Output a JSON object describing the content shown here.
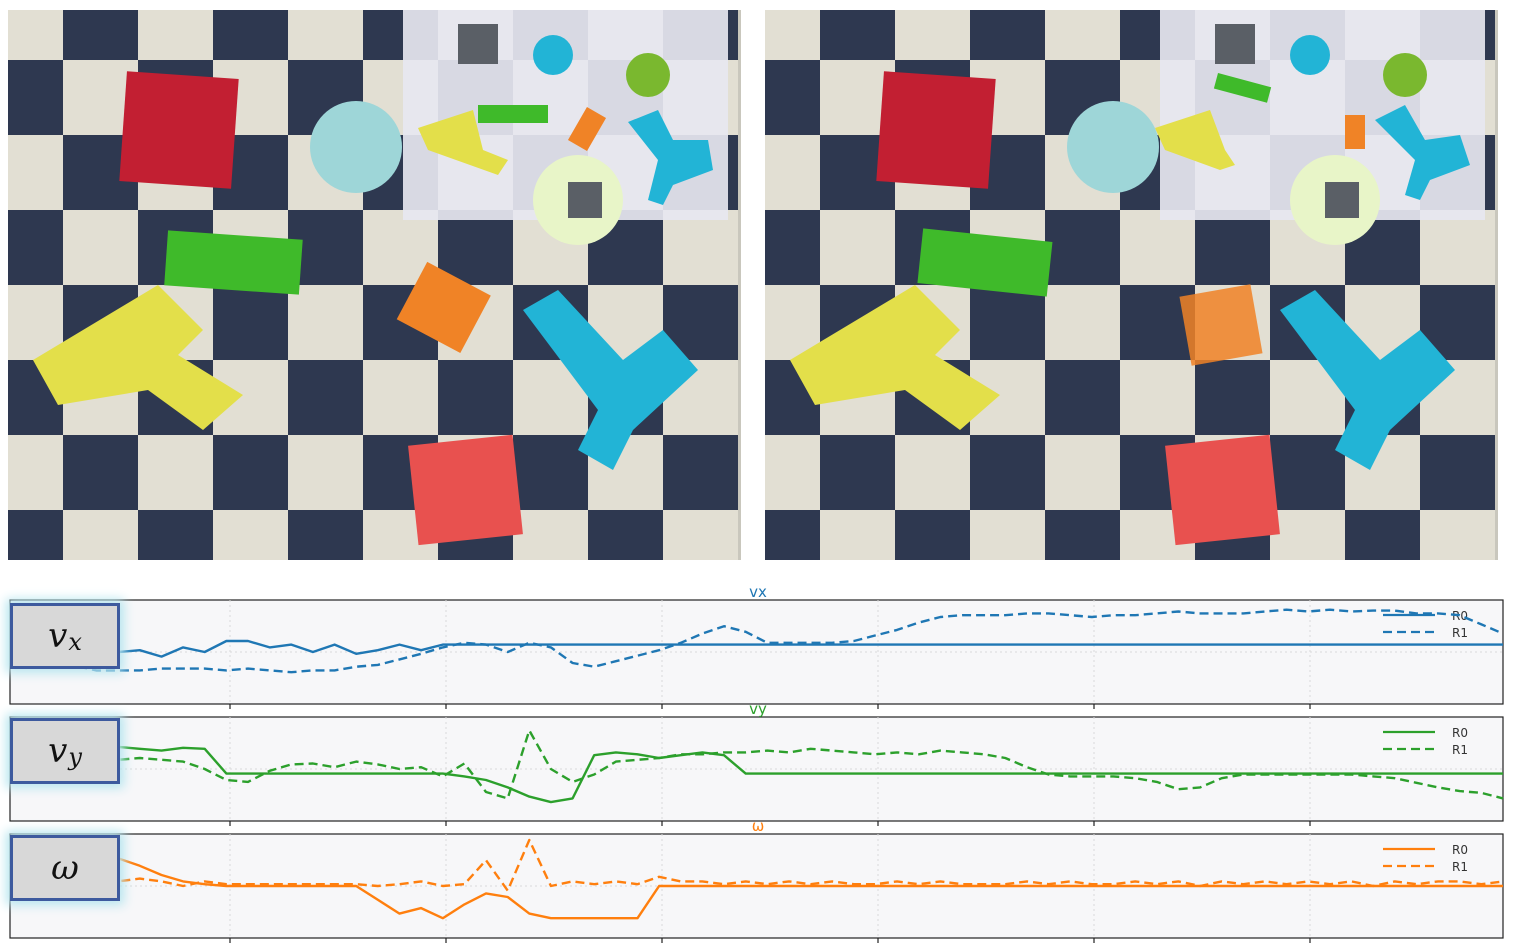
{
  "labels": {
    "vx": {
      "main": "v",
      "sub": "x"
    },
    "vy": {
      "main": "v",
      "sub": "y"
    },
    "omega": {
      "main": "ω"
    }
  },
  "colors": {
    "vx": "#1f77b4",
    "vy": "#2ca02c",
    "omega": "#ff7f0e",
    "floor_light": "#e2dfd3",
    "floor_dark": "#2e3850",
    "box_red": "#c21f32",
    "box_green": "#3fba2a",
    "box_yellow": "#e3df4a",
    "box_orange": "#f08326",
    "box_cyan": "#22b4d6",
    "box_salmon": "#e8514f",
    "table_cyan": "#9ed6d8"
  },
  "chart_data": [
    {
      "type": "line",
      "title": "vx",
      "ylim": [
        0,
        100
      ],
      "grid": true,
      "legend": "top-right",
      "series": [
        {
          "name": "R0",
          "style": "solid",
          "values": [
            35,
            40,
            33,
            55,
            55,
            50,
            52,
            45,
            55,
            50,
            62,
            62,
            55,
            58,
            50,
            58,
            48,
            52,
            58,
            52,
            58,
            58,
            58,
            58,
            58,
            58,
            58,
            58,
            58,
            58,
            58,
            58,
            58,
            58,
            58,
            58,
            58,
            58,
            58,
            58,
            58,
            58,
            58,
            58,
            58,
            58,
            58,
            58,
            58,
            58,
            58,
            58,
            58,
            58,
            58,
            58,
            58,
            58,
            58,
            58,
            58,
            58,
            58,
            58,
            58,
            58,
            58,
            58,
            58,
            58
          ]
        },
        {
          "name": "R1",
          "style": "dashed",
          "values": [
            40,
            37,
            42,
            35,
            30,
            30,
            30,
            32,
            32,
            32,
            30,
            32,
            30,
            28,
            30,
            30,
            34,
            36,
            42,
            48,
            55,
            60,
            58,
            50,
            60,
            55,
            38,
            34,
            40,
            46,
            52,
            60,
            70,
            78,
            72,
            60,
            60,
            60,
            60,
            62,
            68,
            74,
            82,
            88,
            90,
            90,
            90,
            92,
            92,
            90,
            88,
            90,
            90,
            92,
            94,
            92,
            92,
            92,
            94,
            96,
            94,
            96,
            94,
            95,
            95,
            92,
            92,
            90,
            80,
            70
          ]
        }
      ]
    },
    {
      "type": "line",
      "title": "vy",
      "ylim": [
        0,
        100
      ],
      "grid": true,
      "legend": "top-right",
      "series": [
        {
          "name": "R0",
          "style": "solid",
          "values": [
            70,
            72,
            74,
            72,
            74,
            74,
            72,
            70,
            73,
            72,
            45,
            45,
            45,
            45,
            45,
            45,
            45,
            45,
            45,
            45,
            45,
            42,
            38,
            30,
            20,
            14,
            18,
            65,
            68,
            66,
            62,
            65,
            68,
            65,
            45,
            45,
            45,
            45,
            45,
            45,
            45,
            45,
            45,
            45,
            45,
            45,
            45,
            45,
            45,
            45,
            45,
            45,
            45,
            45,
            45,
            45,
            45,
            45,
            45,
            45,
            45,
            45,
            45,
            45,
            45,
            45,
            45,
            45,
            45,
            45
          ]
        },
        {
          "name": "R1",
          "style": "dashed",
          "values": [
            55,
            50,
            56,
            58,
            62,
            60,
            62,
            60,
            58,
            50,
            38,
            36,
            48,
            55,
            56,
            52,
            58,
            55,
            50,
            52,
            42,
            56,
            25,
            18,
            92,
            50,
            36,
            44,
            58,
            60,
            62,
            66,
            66,
            68,
            68,
            70,
            68,
            72,
            70,
            68,
            66,
            68,
            66,
            70,
            68,
            66,
            62,
            52,
            44,
            42,
            42,
            42,
            40,
            36,
            28,
            30,
            40,
            44,
            44,
            44,
            44,
            44,
            44,
            42,
            40,
            35,
            30,
            26,
            24,
            18
          ]
        }
      ]
    },
    {
      "type": "line",
      "title": "ω",
      "ylim": [
        0,
        100
      ],
      "grid": true,
      "legend": "top-right",
      "series": [
        {
          "name": "R0",
          "style": "solid",
          "values": [
            72,
            80,
            76,
            80,
            78,
            80,
            72,
            62,
            55,
            52,
            50,
            50,
            50,
            50,
            50,
            50,
            50,
            35,
            20,
            26,
            15,
            30,
            42,
            38,
            20,
            15,
            15,
            15,
            15,
            15,
            50,
            50,
            50,
            50,
            50,
            50,
            50,
            50,
            50,
            50,
            50,
            50,
            50,
            50,
            50,
            50,
            50,
            50,
            50,
            50,
            50,
            50,
            50,
            50,
            50,
            50,
            50,
            50,
            50,
            50,
            50,
            50,
            50,
            50,
            50,
            50,
            50,
            50,
            50,
            50
          ]
        },
        {
          "name": "R1",
          "style": "dashed",
          "values": [
            55,
            58,
            55,
            58,
            56,
            55,
            58,
            55,
            50,
            55,
            52,
            52,
            52,
            52,
            52,
            52,
            52,
            50,
            52,
            55,
            50,
            52,
            78,
            45,
            100,
            50,
            55,
            52,
            55,
            52,
            60,
            55,
            55,
            52,
            55,
            52,
            55,
            52,
            55,
            52,
            52,
            55,
            52,
            55,
            52,
            52,
            52,
            55,
            52,
            55,
            52,
            52,
            55,
            52,
            55,
            50,
            55,
            52,
            55,
            52,
            55,
            52,
            55,
            50,
            55,
            52,
            55,
            55,
            52,
            55
          ]
        }
      ]
    }
  ]
}
